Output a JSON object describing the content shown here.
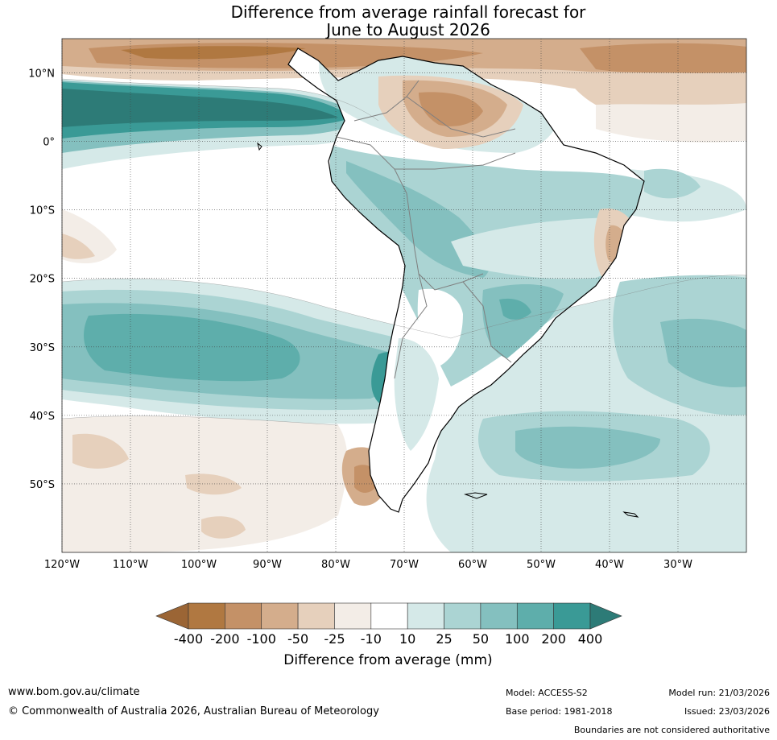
{
  "title": {
    "line1": "Difference from average rainfall forecast for",
    "line2": "June to August 2026"
  },
  "map": {
    "lon_ticks": [
      "120°W",
      "110°W",
      "100°W",
      "90°W",
      "80°W",
      "70°W",
      "60°W",
      "50°W",
      "40°W",
      "30°W"
    ],
    "lat_ticks": [
      "10°N",
      "0°",
      "10°S",
      "20°S",
      "30°S",
      "40°S",
      "50°S"
    ],
    "lon_range": [
      -120,
      -20
    ],
    "lat_range": [
      -60,
      15
    ]
  },
  "legend": {
    "title": "Difference from average (mm)",
    "labels": [
      "-400",
      "-200",
      "-100",
      "-50",
      "-25",
      "-10",
      "10",
      "25",
      "50",
      "100",
      "200",
      "400"
    ],
    "colors": [
      "#9b6535",
      "#b07841",
      "#c49167",
      "#d4ad8c",
      "#e6d0bc",
      "#f3ede7",
      "#ffffff",
      "#d5e9e8",
      "#abd4d3",
      "#84c0bf",
      "#5eaeab",
      "#3a9a96",
      "#2d7b77"
    ]
  },
  "footer": {
    "url": "www.bom.gov.au/climate",
    "copyright": "© Commonwealth of Australia 2026, Australian Bureau of Meteorology",
    "model_label": "Model: ",
    "model_value": "ACCESS-S2",
    "base_label": "Base period: ",
    "base_value": "1981-2018",
    "run_label": "Model run: ",
    "run_value": "21/03/2026",
    "issued_label": "Issued: ",
    "issued_value": "23/03/2026",
    "disclaimer": "Boundaries are not considered authoritative"
  }
}
